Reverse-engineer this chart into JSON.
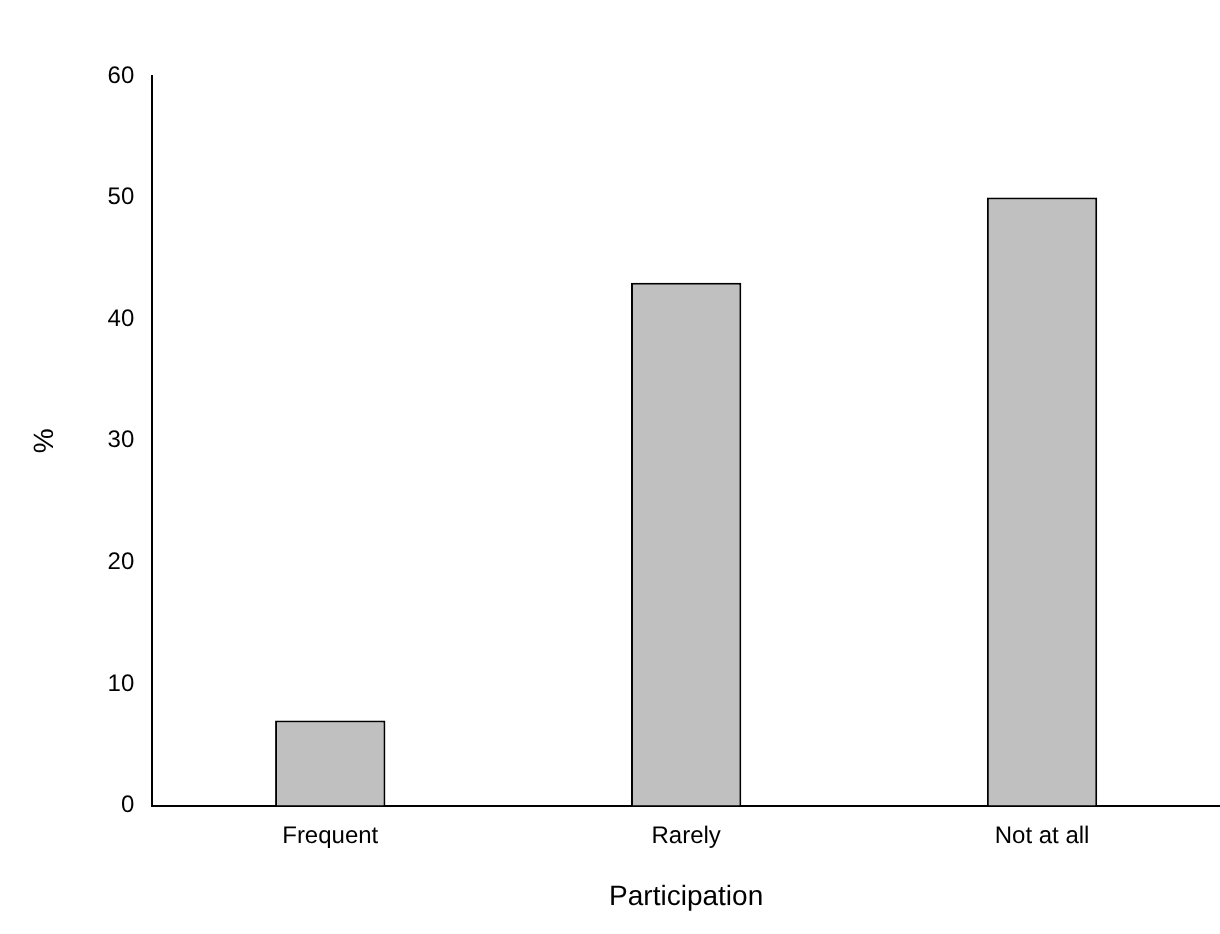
{
  "chart_data": {
    "type": "bar",
    "xlabel": "Participation",
    "ylabel": "%",
    "categories": [
      "Frequent",
      "Rarely",
      "Not at all"
    ],
    "values": [
      7,
      43,
      50
    ],
    "color": "#c0c0c0",
    "ylim": [
      0,
      60
    ],
    "yticks": [
      0,
      10,
      20,
      30,
      40,
      50,
      60
    ],
    "grid": false,
    "legend": false
  }
}
